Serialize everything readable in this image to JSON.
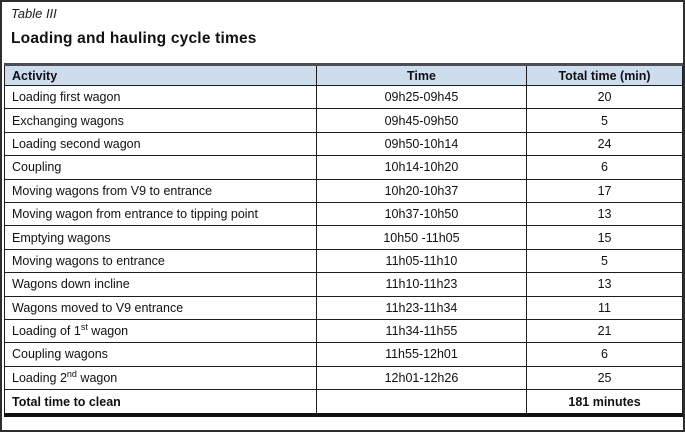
{
  "figure": {
    "caption": "Table III",
    "title": "Loading and hauling cycle times"
  },
  "table": {
    "columns": [
      "Activity",
      "Time",
      "Total time (min)"
    ],
    "rows": [
      {
        "activity": "Loading first wagon",
        "time": "09h25-09h45",
        "total": "20"
      },
      {
        "activity": "Exchanging wagons",
        "time": "09h45-09h50",
        "total": "5"
      },
      {
        "activity": "Loading second wagon",
        "time": "09h50-10h14",
        "total": "24"
      },
      {
        "activity": "Coupling",
        "time": "10h14-10h20",
        "total": "6"
      },
      {
        "activity": "Moving wagons from V9 to entrance",
        "time": "10h20-10h37",
        "total": "17"
      },
      {
        "activity": "Moving wagon from entrance to tipping point",
        "time": "10h37-10h50",
        "total": "13"
      },
      {
        "activity": "Emptying wagons",
        "time": "10h50 -11h05",
        "total": "15"
      },
      {
        "activity": "Moving wagons to entrance",
        "time": "11h05-11h10",
        "total": "5"
      },
      {
        "activity": "Wagons down incline",
        "time": "11h10-11h23",
        "total": "13"
      },
      {
        "activity": "Wagons moved to V9 entrance",
        "time": "11h23-11h34",
        "total": "11"
      },
      {
        "activity": "Loading of 1",
        "activity_sup": "st",
        "activity_rest": " wagon",
        "time": "11h34-11h55",
        "total": "21"
      },
      {
        "activity": "Coupling wagons",
        "time": "11h55-12h01",
        "total": "6"
      },
      {
        "activity": "Loading 2",
        "activity_sup": "nd",
        "activity_rest": " wagon",
        "time": "12h01-12h26",
        "total": "25"
      }
    ],
    "footer": {
      "label": "Total time to clean",
      "time": "",
      "total": "181 minutes"
    }
  },
  "colors": {
    "header_fill": "#cdddee",
    "header_top_rule": "#4a4f55",
    "border": "#1d1d1d"
  },
  "chart_data": {
    "type": "table",
    "title": "Loading and hauling cycle times",
    "categories": [
      "Loading first wagon",
      "Exchanging wagons",
      "Loading second wagon",
      "Coupling",
      "Moving wagons from V9 to entrance",
      "Moving wagon from entrance to tipping point",
      "Emptying wagons",
      "Moving wagons to entrance",
      "Wagons down incline",
      "Wagons moved to V9 entrance",
      "Loading of 1st wagon",
      "Coupling wagons",
      "Loading 2nd wagon"
    ],
    "series": [
      {
        "name": "Total time (min)",
        "values": [
          20,
          5,
          24,
          6,
          17,
          13,
          15,
          5,
          13,
          11,
          21,
          6,
          25
        ]
      }
    ],
    "total_minutes": 181
  }
}
